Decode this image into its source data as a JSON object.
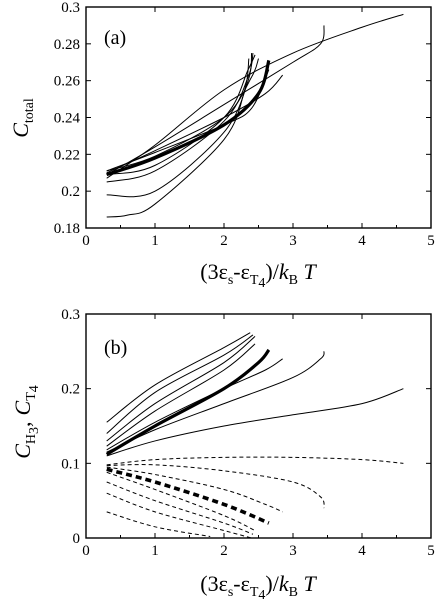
{
  "chart_data": [
    {
      "type": "line",
      "panel_label": "(a)",
      "xlabel": {
        "open": "(3",
        "eps": "ε",
        "s_sub": "s",
        "dash": "-",
        "eps2": "ε",
        "t_sub": "T",
        "t_subsub": "4",
        "close": ")/",
        "k": "k",
        "b_sub": "B",
        "T": " T"
      },
      "ylabel": {
        "C": "C",
        "sub": "total"
      },
      "xlim": [
        0,
        5
      ],
      "ylim": [
        0.18,
        0.3
      ],
      "xticks": [
        "0",
        "1",
        "2",
        "3",
        "4",
        "5"
      ],
      "yticks": [
        "0.18",
        "0.2",
        "0.22",
        "0.24",
        "0.26",
        "0.28",
        "0.3"
      ],
      "series": [
        {
          "style": "thin",
          "points": [
            [
              0.3,
              0.207
            ],
            [
              1.0,
              0.225
            ],
            [
              2.0,
              0.255
            ],
            [
              3.0,
              0.275
            ],
            [
              4.0,
              0.289
            ],
            [
              4.6,
              0.296
            ]
          ]
        },
        {
          "style": "thin",
          "points": [
            [
              0.3,
              0.209
            ],
            [
              1.0,
              0.224
            ],
            [
              2.0,
              0.247
            ],
            [
              3.0,
              0.27
            ],
            [
              3.4,
              0.28
            ],
            [
              3.45,
              0.29
            ]
          ]
        },
        {
          "style": "thin",
          "points": [
            [
              0.3,
              0.21
            ],
            [
              1.0,
              0.222
            ],
            [
              2.0,
              0.24
            ],
            [
              2.6,
              0.253
            ],
            [
              2.85,
              0.263
            ]
          ]
        },
        {
          "style": "thin",
          "points": [
            [
              0.3,
              0.211
            ],
            [
              1.0,
              0.221
            ],
            [
              2.0,
              0.236
            ],
            [
              2.4,
              0.245
            ],
            [
              2.65,
              0.266
            ]
          ]
        },
        {
          "style": "thick",
          "points": [
            [
              0.3,
              0.209
            ],
            [
              1.0,
              0.218
            ],
            [
              2.0,
              0.236
            ],
            [
              2.5,
              0.253
            ],
            [
              2.65,
              0.271
            ]
          ]
        },
        {
          "style": "thin",
          "points": [
            [
              0.3,
              0.211
            ],
            [
              1.0,
              0.219
            ],
            [
              2.0,
              0.24
            ],
            [
              2.4,
              0.262
            ],
            [
              2.5,
              0.272
            ]
          ]
        },
        {
          "style": "thin",
          "points": [
            [
              0.3,
              0.209
            ],
            [
              1.0,
              0.214
            ],
            [
              2.0,
              0.24
            ],
            [
              2.35,
              0.266
            ],
            [
              2.45,
              0.274
            ]
          ]
        },
        {
          "style": "thin",
          "points": [
            [
              0.3,
              0.205
            ],
            [
              1.0,
              0.211
            ],
            [
              2.0,
              0.238
            ],
            [
              2.35,
              0.262
            ],
            [
              2.42,
              0.275
            ]
          ]
        },
        {
          "style": "thin",
          "points": [
            [
              0.3,
              0.198
            ],
            [
              1.0,
              0.2
            ],
            [
              2.0,
              0.232
            ],
            [
              2.35,
              0.26
            ],
            [
              2.4,
              0.275
            ]
          ]
        },
        {
          "style": "thin",
          "points": [
            [
              0.3,
              0.186
            ],
            [
              0.6,
              0.187
            ],
            [
              1.0,
              0.193
            ],
            [
              2.0,
              0.228
            ],
            [
              2.3,
              0.255
            ],
            [
              2.36,
              0.272
            ]
          ]
        }
      ]
    },
    {
      "type": "line",
      "panel_label": "(b)",
      "xlabel": {
        "open": "(3",
        "eps": "ε",
        "s_sub": "s",
        "dash": "-",
        "eps2": "ε",
        "t_sub": "T",
        "t_subsub": "4",
        "close": ")/",
        "k": "k",
        "b_sub": "B",
        "T": " T"
      },
      "ylabel": {
        "C1": "C",
        "sub1": "H",
        "subsub1": "3",
        "comma": ",",
        "C2": "C",
        "sub2": "T",
        "subsub2": "4"
      },
      "xlim": [
        0,
        5
      ],
      "ylim": [
        0,
        0.3
      ],
      "xticks": [
        "0",
        "1",
        "2",
        "3",
        "4",
        "5"
      ],
      "yticks": [
        "0",
        "0.1",
        "0.2",
        "0.3"
      ],
      "series": [
        {
          "style": "thin",
          "points": [
            [
              0.3,
              0.11
            ],
            [
              1.0,
              0.13
            ],
            [
              2.0,
              0.15
            ],
            [
              3.0,
              0.165
            ],
            [
              4.0,
              0.18
            ],
            [
              4.6,
              0.2
            ]
          ]
        },
        {
          "style": "thin",
          "points": [
            [
              0.3,
              0.115
            ],
            [
              1.0,
              0.145
            ],
            [
              2.0,
              0.18
            ],
            [
              3.0,
              0.215
            ],
            [
              3.4,
              0.24
            ],
            [
              3.45,
              0.25
            ]
          ]
        },
        {
          "style": "thin",
          "points": [
            [
              0.3,
              0.118
            ],
            [
              1.0,
              0.155
            ],
            [
              2.0,
              0.2
            ],
            [
              2.6,
              0.225
            ],
            [
              2.85,
              0.24
            ]
          ]
        },
        {
          "style": "thick",
          "points": [
            [
              0.3,
              0.112
            ],
            [
              1.0,
              0.15
            ],
            [
              2.0,
              0.2
            ],
            [
              2.5,
              0.235
            ],
            [
              2.65,
              0.252
            ]
          ]
        },
        {
          "style": "thin",
          "points": [
            [
              0.3,
              0.123
            ],
            [
              1.0,
              0.17
            ],
            [
              2.0,
              0.225
            ],
            [
              2.45,
              0.26
            ]
          ]
        },
        {
          "style": "thin",
          "points": [
            [
              0.3,
              0.13
            ],
            [
              1.0,
              0.18
            ],
            [
              2.0,
              0.235
            ],
            [
              2.45,
              0.27
            ]
          ]
        },
        {
          "style": "thin",
          "points": [
            [
              0.3,
              0.14
            ],
            [
              1.0,
              0.195
            ],
            [
              2.0,
              0.245
            ],
            [
              2.42,
              0.272
            ]
          ]
        },
        {
          "style": "thin",
          "points": [
            [
              0.3,
              0.155
            ],
            [
              1.0,
              0.205
            ],
            [
              2.0,
              0.255
            ],
            [
              2.38,
              0.275
            ]
          ]
        },
        {
          "style": "dashed",
          "points": [
            [
              0.3,
              0.098
            ],
            [
              1.0,
              0.105
            ],
            [
              2.0,
              0.108
            ],
            [
              3.0,
              0.108
            ],
            [
              4.0,
              0.105
            ],
            [
              4.6,
              0.1
            ]
          ]
        },
        {
          "style": "dashed",
          "points": [
            [
              0.3,
              0.097
            ],
            [
              1.0,
              0.098
            ],
            [
              2.0,
              0.09
            ],
            [
              3.0,
              0.075
            ],
            [
              3.4,
              0.055
            ],
            [
              3.45,
              0.04
            ]
          ]
        },
        {
          "style": "dashed",
          "points": [
            [
              0.3,
              0.095
            ],
            [
              1.0,
              0.085
            ],
            [
              2.0,
              0.065
            ],
            [
              2.6,
              0.045
            ],
            [
              2.85,
              0.035
            ]
          ]
        },
        {
          "style": "thick-dashed",
          "points": [
            [
              0.3,
              0.092
            ],
            [
              1.0,
              0.075
            ],
            [
              2.0,
              0.045
            ],
            [
              2.65,
              0.02
            ]
          ]
        },
        {
          "style": "dashed",
          "points": [
            [
              0.3,
              0.088
            ],
            [
              1.0,
              0.065
            ],
            [
              2.0,
              0.03
            ],
            [
              2.45,
              0.01
            ]
          ]
        },
        {
          "style": "dashed",
          "points": [
            [
              0.3,
              0.075
            ],
            [
              1.0,
              0.05
            ],
            [
              2.0,
              0.02
            ],
            [
              2.42,
              0.005
            ]
          ]
        },
        {
          "style": "dashed",
          "points": [
            [
              0.3,
              0.06
            ],
            [
              1.0,
              0.035
            ],
            [
              2.0,
              0.01
            ],
            [
              2.4,
              0.0
            ]
          ]
        },
        {
          "style": "dashed",
          "points": [
            [
              0.3,
              0.035
            ],
            [
              1.0,
              0.015
            ],
            [
              1.8,
              0.002
            ]
          ]
        }
      ]
    }
  ]
}
